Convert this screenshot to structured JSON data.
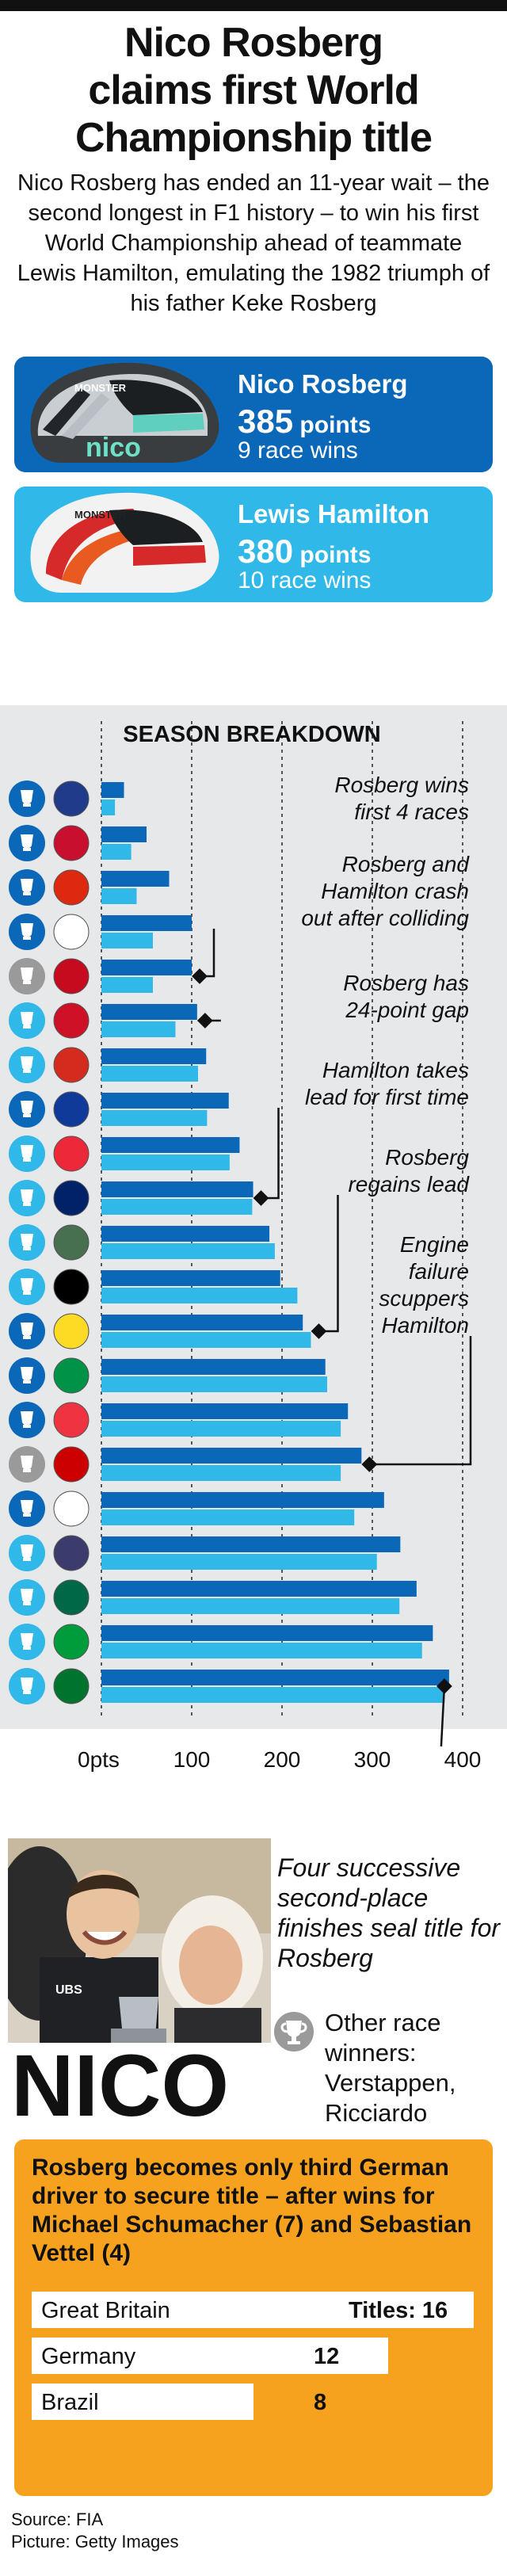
{
  "headline": {
    "line1": "Nico Rosberg",
    "line2": "claims first World",
    "line3": "Championship title"
  },
  "intro": "Nico Rosberg has ended an 11-year wait – the second longest in F1 history – to win his first World Championship ahead of teammate Lewis Hamilton, emulating the 1982 triumph of his father Keke Rosberg",
  "drivers": [
    {
      "name": "Nico Rosberg",
      "points_value": "385",
      "points_unit": "points",
      "wins": "9 race wins",
      "helmet_text": "nico",
      "sponsor_text": "MONSTER",
      "color": "#0b67b8"
    },
    {
      "name": "Lewis Hamilton",
      "points_value": "380",
      "points_unit": "points",
      "wins": "10 race wins",
      "sponsor_text": "MONSTER",
      "color": "#2fb8e8"
    }
  ],
  "chart_data": {
    "type": "bar",
    "title": "SEASON BREAKDOWN",
    "x_ticks": [
      "0pts",
      "100",
      "200",
      "300",
      "400"
    ],
    "xlim": [
      0,
      400
    ],
    "grid": true,
    "orientation": "horizontal",
    "winner_colors": {
      "rosberg": "#0b67b8",
      "hamilton": "#2fb8e8",
      "other": "#9a9a9a"
    },
    "races": [
      {
        "flag": "Australia",
        "winner": "rosberg",
        "rosberg": 25,
        "hamilton": 15
      },
      {
        "flag": "Bahrain",
        "winner": "rosberg",
        "rosberg": 50,
        "hamilton": 33
      },
      {
        "flag": "China",
        "winner": "rosberg",
        "rosberg": 75,
        "hamilton": 39
      },
      {
        "flag": "Russia",
        "winner": "rosberg",
        "rosberg": 100,
        "hamilton": 57
      },
      {
        "flag": "Spain",
        "winner": "other",
        "rosberg": 100,
        "hamilton": 57
      },
      {
        "flag": "Monaco",
        "winner": "hamilton",
        "rosberg": 106,
        "hamilton": 82
      },
      {
        "flag": "Canada",
        "winner": "hamilton",
        "rosberg": 116,
        "hamilton": 107
      },
      {
        "flag": "Europe",
        "winner": "rosberg",
        "rosberg": 141,
        "hamilton": 117
      },
      {
        "flag": "Austria",
        "winner": "hamilton",
        "rosberg": 153,
        "hamilton": 142
      },
      {
        "flag": "Great Britain",
        "winner": "hamilton",
        "rosberg": 168,
        "hamilton": 167
      },
      {
        "flag": "Hungary",
        "winner": "hamilton",
        "rosberg": 186,
        "hamilton": 192
      },
      {
        "flag": "Germany",
        "winner": "hamilton",
        "rosberg": 198,
        "hamilton": 217
      },
      {
        "flag": "Belgium",
        "winner": "rosberg",
        "rosberg": 223,
        "hamilton": 232
      },
      {
        "flag": "Italy",
        "winner": "rosberg",
        "rosberg": 248,
        "hamilton": 250
      },
      {
        "flag": "Singapore",
        "winner": "rosberg",
        "rosberg": 273,
        "hamilton": 265
      },
      {
        "flag": "Malaysia",
        "winner": "other",
        "rosberg": 288,
        "hamilton": 265
      },
      {
        "flag": "Japan",
        "winner": "rosberg",
        "rosberg": 313,
        "hamilton": 280
      },
      {
        "flag": "United States",
        "winner": "hamilton",
        "rosberg": 331,
        "hamilton": 305
      },
      {
        "flag": "Mexico",
        "winner": "hamilton",
        "rosberg": 349,
        "hamilton": 330
      },
      {
        "flag": "Brazil",
        "winner": "hamilton",
        "rosberg": 367,
        "hamilton": 355
      },
      {
        "flag": "Abu Dhabi",
        "winner": "hamilton",
        "rosberg": 385,
        "hamilton": 380
      }
    ],
    "annotations": [
      {
        "line1": "Rosberg wins",
        "line2": "first 4 races"
      },
      {
        "line1": "Rosberg and",
        "line2": "Hamilton crash",
        "line3": "out after colliding"
      },
      {
        "line1": "Rosberg has",
        "line2": "24-point gap"
      },
      {
        "line1": "Hamilton takes",
        "line2": "lead for first time"
      },
      {
        "line1": "Rosberg",
        "line2": "regains lead"
      },
      {
        "line1": "Engine",
        "line2": "failure",
        "line3": "scuppers",
        "line4": "Hamilton"
      }
    ]
  },
  "caption": "Four successive second-place finishes seal title for Rosberg",
  "other_winners": {
    "label": "Other race winners:",
    "names": "Verstappen, Ricciardo"
  },
  "photo_banner": "NICO",
  "photo_sponsor": "UBS",
  "titles_box": {
    "heading": "Rosberg becomes only third German driver to secure title – after wins for Michael Schumacher (7) and Sebastian Vettel (4)",
    "rows": [
      {
        "country": "Great Britain",
        "titles": "Titles: 16",
        "count": 16
      },
      {
        "country": "Germany",
        "titles": "12",
        "count": 12
      },
      {
        "country": "Brazil",
        "titles": "8",
        "count": 8
      }
    ]
  },
  "source": "Source: FIA",
  "picture": "Picture: Getty Images"
}
